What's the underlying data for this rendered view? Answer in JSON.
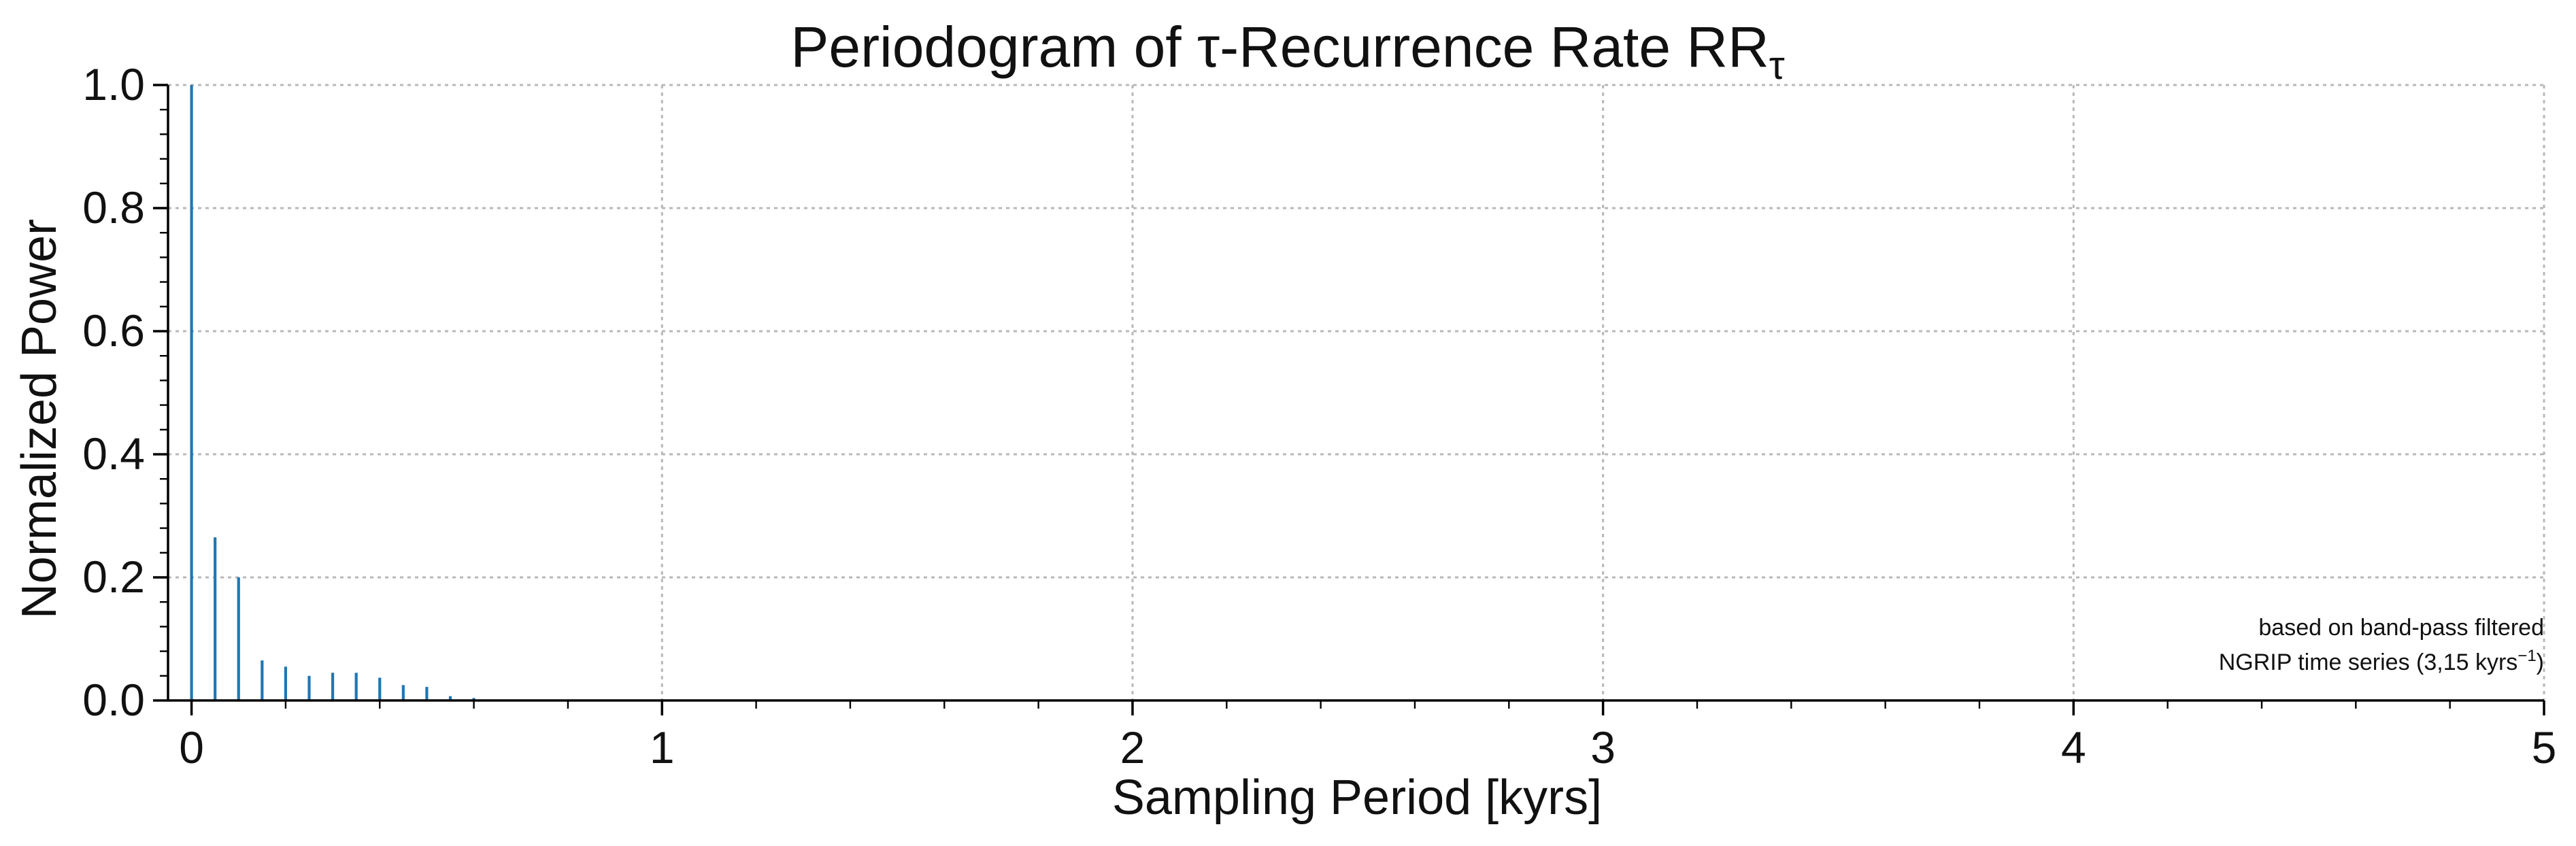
{
  "colors": {
    "series": "#1f77b4",
    "grid": "#b8b8b8",
    "axis": "#000000",
    "text": "#111111"
  },
  "chart_data": {
    "type": "bar",
    "title": "Periodogram of τ-Recurrence Rate RR",
    "title_subscript": "τ",
    "xlabel": "Sampling Period [kyrs]",
    "ylabel": "Normalized Power",
    "xlim": [
      -0.05,
      5
    ],
    "ylim": [
      0,
      1
    ],
    "grid": true,
    "legend": "none",
    "x_ticks": [
      0,
      1,
      2,
      3,
      4,
      5
    ],
    "x_tick_labels": [
      "0",
      "1",
      "2",
      "3",
      "4",
      "5"
    ],
    "y_ticks": [
      0.0,
      0.2,
      0.4,
      0.6,
      0.8,
      1.0
    ],
    "y_tick_labels": [
      "0.0",
      "0.2",
      "0.4",
      "0.6",
      "0.8",
      "1.0"
    ],
    "x_minor_step": 0.2,
    "y_minor_step": 0.04,
    "x": [
      0.0,
      0.05,
      0.1,
      0.15,
      0.2,
      0.25,
      0.3,
      0.35,
      0.4,
      0.45,
      0.5,
      0.55,
      0.6,
      0.65
    ],
    "values": [
      1.0,
      0.265,
      0.2,
      0.065,
      0.055,
      0.04,
      0.045,
      0.045,
      0.037,
      0.025,
      0.022,
      0.007,
      0.004,
      0.0
    ],
    "annotation_lines": [
      "based on band-pass filtered",
      "NGRIP time series (3,15 kyrs"
    ],
    "annotation_superscript": "−1",
    "annotation_suffix": ")"
  }
}
